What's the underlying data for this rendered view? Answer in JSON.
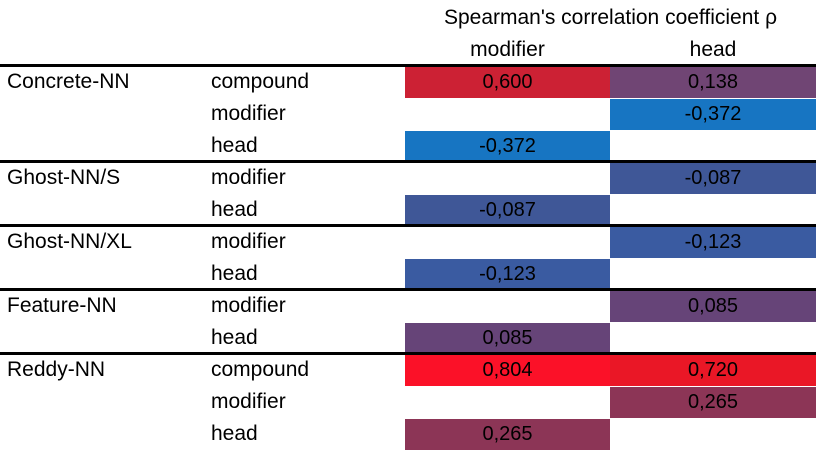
{
  "header": {
    "title": "Spearman's correlation coefficient ρ",
    "col_modifier": "modifier",
    "col_head": "head"
  },
  "groups": [
    {
      "name": "Concrete-NN",
      "rows": [
        {
          "label": "compound",
          "modifier": {
            "value": "0,600",
            "color": "#cc2134"
          },
          "head": {
            "value": "0,138",
            "color": "#704574"
          }
        },
        {
          "label": "modifier",
          "modifier": null,
          "head": {
            "value": "-0,372",
            "color": "#1775c2"
          }
        },
        {
          "label": "head",
          "modifier": {
            "value": "-0,372",
            "color": "#1775c2"
          },
          "head": null
        }
      ]
    },
    {
      "name": "Ghost-NN/S",
      "rows": [
        {
          "label": "modifier",
          "modifier": null,
          "head": {
            "value": "-0,087",
            "color": "#3f5797"
          }
        },
        {
          "label": "head",
          "modifier": {
            "value": "-0,087",
            "color": "#3f5797"
          },
          "head": null
        }
      ]
    },
    {
      "name": "Ghost-NN/XL",
      "rows": [
        {
          "label": "modifier",
          "modifier": null,
          "head": {
            "value": "-0,123",
            "color": "#3a5ba1"
          }
        },
        {
          "label": "head",
          "modifier": {
            "value": "-0,123",
            "color": "#3a5ba1"
          },
          "head": null
        }
      ]
    },
    {
      "name": "Feature-NN",
      "rows": [
        {
          "label": "modifier",
          "modifier": null,
          "head": {
            "value": "0,085",
            "color": "#664478"
          }
        },
        {
          "label": "head",
          "modifier": {
            "value": "0,085",
            "color": "#664478"
          },
          "head": null
        }
      ]
    },
    {
      "name": "Reddy-NN",
      "rows": [
        {
          "label": "compound",
          "modifier": {
            "value": "0,804",
            "color": "#fb1128"
          },
          "head": {
            "value": "0,720",
            "color": "#ea1726"
          }
        },
        {
          "label": "modifier",
          "modifier": null,
          "head": {
            "value": "0,265",
            "color": "#8c3556"
          }
        },
        {
          "label": "head",
          "modifier": {
            "value": "0,265",
            "color": "#8c3556"
          },
          "head": null
        }
      ]
    }
  ]
}
